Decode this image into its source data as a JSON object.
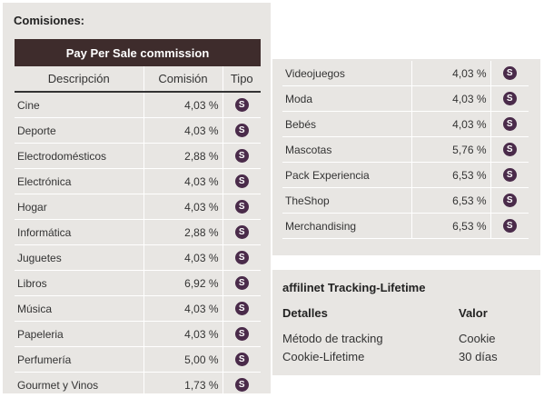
{
  "section_title": "Comisiones:",
  "table_title": "Pay Per Sale commission",
  "headers": {
    "descripcion": "Descripción",
    "comision": "Comisión",
    "tipo": "Tipo"
  },
  "badge": "S",
  "left_rows": [
    {
      "name": "Cine",
      "value": "4,03 %"
    },
    {
      "name": "Deporte",
      "value": "4,03 %"
    },
    {
      "name": "Electrodomésticos",
      "value": "2,88 %"
    },
    {
      "name": "Electrónica",
      "value": "4,03 %"
    },
    {
      "name": "Hogar",
      "value": "4,03 %"
    },
    {
      "name": "Informática",
      "value": "2,88 %"
    },
    {
      "name": "Juguetes",
      "value": "4,03 %"
    },
    {
      "name": "Libros",
      "value": "6,92 %"
    },
    {
      "name": "Música",
      "value": "4,03 %"
    },
    {
      "name": "Papeleria",
      "value": "4,03 %"
    },
    {
      "name": "Perfumería",
      "value": "5,00 %"
    },
    {
      "name": "Gourmet y Vinos",
      "value": "1,73 %"
    }
  ],
  "right_rows": [
    {
      "name": "Videojuegos",
      "value": "4,03 %"
    },
    {
      "name": "Moda",
      "value": "4,03 %"
    },
    {
      "name": "Bebés",
      "value": "4,03 %"
    },
    {
      "name": "Mascotas",
      "value": "5,76 %"
    },
    {
      "name": "Pack Experiencia",
      "value": "6,53 %"
    },
    {
      "name": "TheShop",
      "value": "6,53 %"
    },
    {
      "name": "Merchandising",
      "value": "6,53 %"
    }
  ],
  "lifetime": {
    "title": "affilinet Tracking-Lifetime",
    "col_detalles": "Detalles",
    "col_valor": "Valor",
    "rows": [
      {
        "label": "Método de tracking",
        "value": "Cookie"
      },
      {
        "label": "Cookie-Lifetime",
        "value": "30 días"
      }
    ]
  },
  "colors": {
    "header_bg": "#3e2c2c",
    "badge": "#4a2b4a",
    "panel_bg": "#e8e6e3"
  }
}
